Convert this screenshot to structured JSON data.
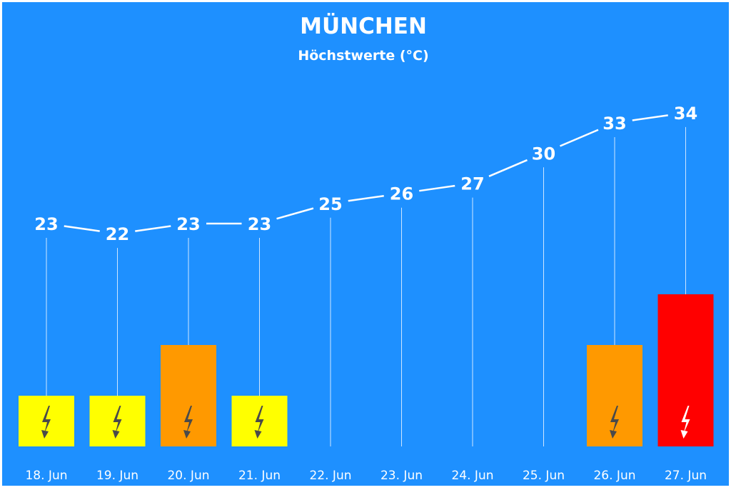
{
  "chart_data": {
    "type": "line",
    "title": "MÜNCHEN",
    "subtitle": "Höchstwerte (°C)",
    "categories": [
      "18. Jun",
      "19. Jun",
      "20. Jun",
      "21. Jun",
      "22. Jun",
      "23. Jun",
      "24. Jun",
      "25. Jun",
      "26. Jun",
      "27. Jun"
    ],
    "values": [
      23,
      22,
      23,
      23,
      25,
      26,
      27,
      30,
      33,
      34
    ],
    "ylim": [
      0,
      36
    ],
    "grid": false,
    "warnings": [
      {
        "category": "18. Jun",
        "level": 1,
        "color": "#ffff00",
        "icon": "lightning-icon"
      },
      {
        "category": "19. Jun",
        "level": 1,
        "color": "#ffff00",
        "icon": "lightning-icon"
      },
      {
        "category": "20. Jun",
        "level": 2,
        "color": "#ff9900",
        "icon": "lightning-icon"
      },
      {
        "category": "21. Jun",
        "level": 1,
        "color": "#ffff00",
        "icon": "lightning-icon"
      },
      {
        "category": "26. Jun",
        "level": 2,
        "color": "#ff9900",
        "icon": "lightning-icon"
      },
      {
        "category": "27. Jun",
        "level": 3,
        "color": "#ff0000",
        "icon": "lightning-icon"
      }
    ],
    "colors": {
      "background": "#1e90ff",
      "line": "#ffffff",
      "icon_dark": "#4a4a4a",
      "icon_light": "#ffffff"
    }
  }
}
